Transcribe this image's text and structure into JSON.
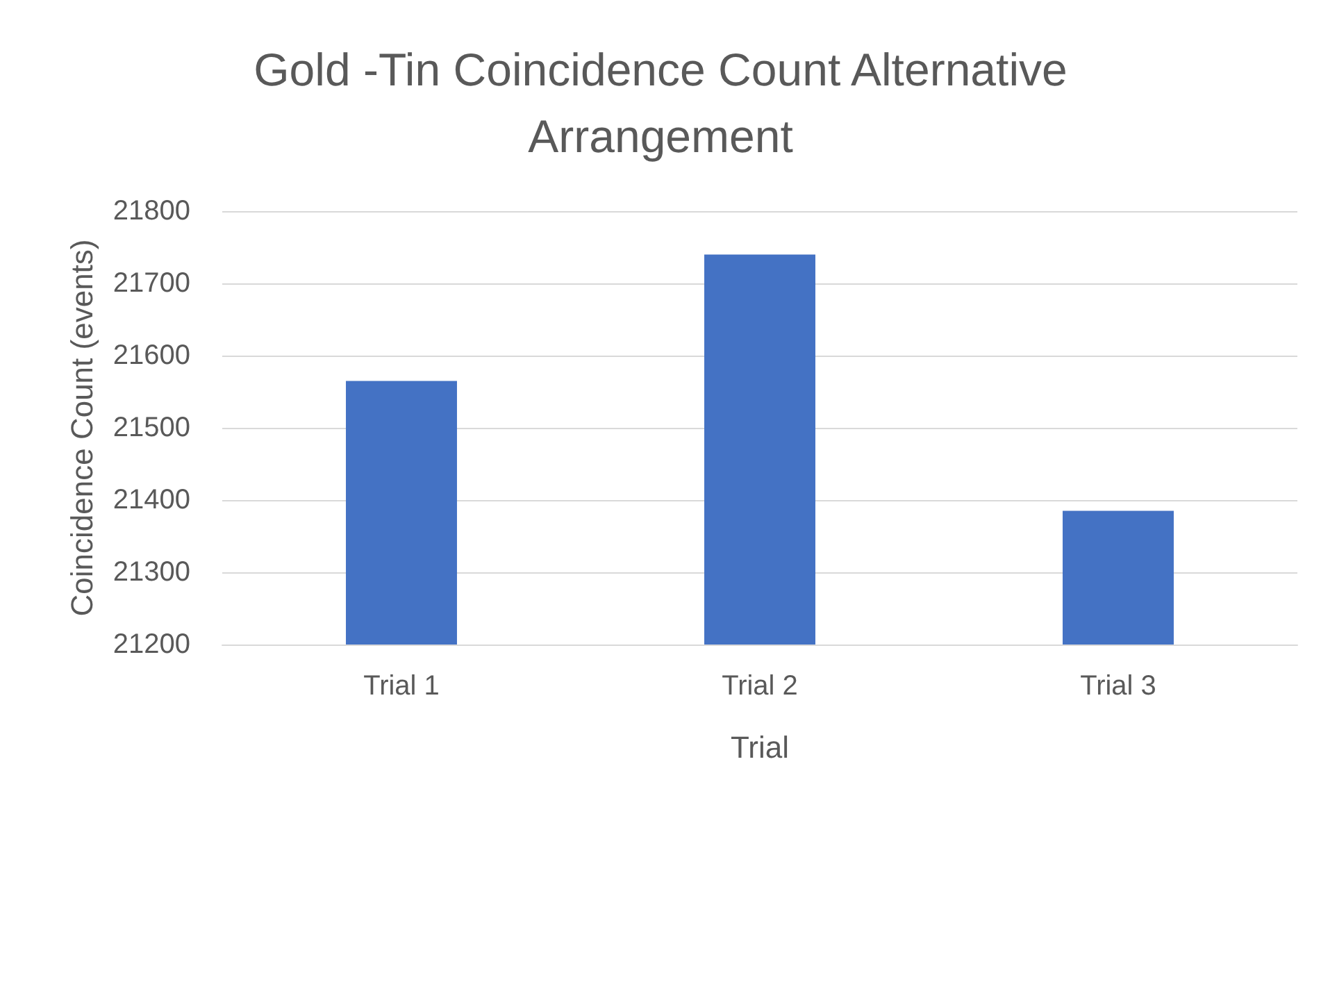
{
  "chart_data": {
    "type": "bar",
    "title": "Gold -Tin Coincidence Count Alternative Arrangement",
    "xlabel": "Trial",
    "ylabel": "Coincidence Count (events)",
    "categories": [
      "Trial 1",
      "Trial 2",
      "Trial 3"
    ],
    "values": [
      21565,
      21740,
      21385
    ],
    "color": "#4472c4",
    "ylim": [
      21200,
      21800
    ],
    "yticks": [
      21200,
      21300,
      21400,
      21500,
      21600,
      21700,
      21800
    ],
    "grid": "y"
  }
}
